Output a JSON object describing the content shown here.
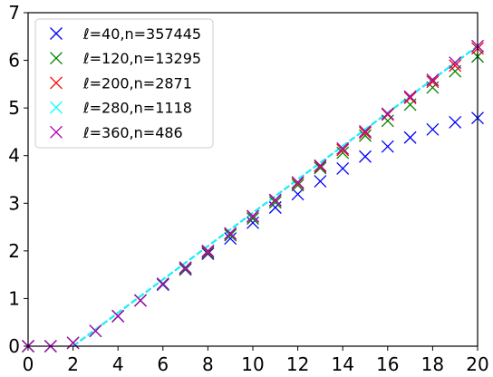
{
  "chart_data": {
    "type": "scatter",
    "title": "",
    "xlabel": "",
    "ylabel": "",
    "xlim": [
      0,
      20
    ],
    "ylim": [
      0,
      7
    ],
    "xticks": [
      0,
      2,
      4,
      6,
      8,
      10,
      12,
      14,
      16,
      18,
      20
    ],
    "yticks": [
      0,
      1,
      2,
      3,
      4,
      5,
      6,
      7
    ],
    "grid": false,
    "legend_position": "upper-left",
    "marker": "x",
    "series": [
      {
        "name": "ℓ=40,n=357445",
        "color": "#0000ff",
        "x": [
          0,
          1,
          2,
          3,
          4,
          5,
          6,
          7,
          8,
          9,
          10,
          11,
          12,
          13,
          14,
          15,
          16,
          17,
          18,
          19,
          20
        ],
        "y": [
          0,
          0,
          0.07,
          0.32,
          0.63,
          0.96,
          1.29,
          1.61,
          1.94,
          2.26,
          2.59,
          2.91,
          3.19,
          3.46,
          3.73,
          3.98,
          4.19,
          4.38,
          4.55,
          4.7,
          4.79
        ]
      },
      {
        "name": "ℓ=120,n=13295",
        "color": "#008000",
        "x": [
          0,
          1,
          2,
          3,
          4,
          5,
          6,
          7,
          8,
          9,
          10,
          11,
          12,
          13,
          14,
          15,
          16,
          17,
          18,
          19,
          20
        ],
        "y": [
          0,
          0,
          0.07,
          0.32,
          0.63,
          0.96,
          1.3,
          1.62,
          1.96,
          2.33,
          2.68,
          3.02,
          3.38,
          3.74,
          4.06,
          4.42,
          4.73,
          5.07,
          5.43,
          5.77,
          6.08
        ]
      },
      {
        "name": "ℓ=200,n=2871",
        "color": "#ff0000",
        "x": [
          0,
          1,
          2,
          3,
          4,
          5,
          6,
          7,
          8,
          9,
          10,
          11,
          12,
          13,
          14,
          15,
          16,
          17,
          18,
          19,
          20
        ],
        "y": [
          0,
          0,
          0.07,
          0.32,
          0.63,
          0.96,
          1.31,
          1.64,
          1.98,
          2.36,
          2.72,
          3.06,
          3.42,
          3.77,
          4.12,
          4.48,
          4.86,
          5.21,
          5.55,
          5.89,
          6.25
        ]
      },
      {
        "name": "ℓ=280,n=1118",
        "color": "#00ffff",
        "x": [
          0,
          1,
          2,
          3,
          4,
          5,
          6,
          7,
          8,
          9,
          10,
          11,
          12,
          13,
          14,
          15,
          16,
          17,
          18,
          19,
          20
        ],
        "y": [
          0,
          0,
          0.07,
          0.32,
          0.63,
          0.96,
          1.31,
          1.65,
          2.0,
          2.37,
          2.73,
          3.07,
          3.44,
          3.79,
          4.15,
          4.51,
          4.88,
          5.24,
          5.59,
          5.95,
          6.3
        ]
      },
      {
        "name": "ℓ=360,n=486",
        "color": "#aa00aa",
        "x": [
          0,
          1,
          2,
          3,
          4,
          5,
          6,
          7,
          8,
          9,
          10,
          11,
          12,
          13,
          14,
          15,
          16,
          17,
          18,
          19,
          20
        ],
        "y": [
          0,
          0,
          0.07,
          0.32,
          0.63,
          0.96,
          1.31,
          1.65,
          2.0,
          2.37,
          2.73,
          3.07,
          3.44,
          3.79,
          4.15,
          4.51,
          4.88,
          5.24,
          5.59,
          5.95,
          6.3
        ]
      }
    ],
    "dashed_lines": [
      {
        "color": "#aa00aa",
        "x": [
          2,
          20
        ],
        "y": [
          0,
          6.3
        ]
      },
      {
        "color": "#00ffff",
        "x": [
          2,
          20
        ],
        "y": [
          0,
          6.3
        ]
      }
    ]
  }
}
